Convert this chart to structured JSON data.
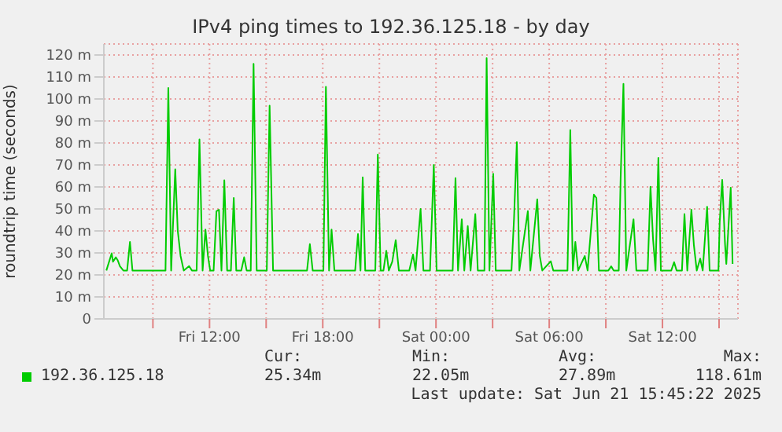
{
  "chart_data": {
    "type": "line",
    "title": "IPv4 ping times to 192.36.125.18 - by day",
    "ylabel": "roundtrip time (seconds)",
    "x": [
      "2025-06-20T06:32",
      "2025-06-20T06:49",
      "2025-06-20T06:53",
      "2025-06-20T07:02",
      "2025-06-20T07:08",
      "2025-06-20T07:15",
      "2025-06-20T07:26",
      "2025-06-20T07:38",
      "2025-06-20T07:47",
      "2025-06-20T07:55",
      "2025-06-20T09:40",
      "2025-06-20T09:49",
      "2025-06-20T09:58",
      "2025-06-20T10:11",
      "2025-06-20T10:19",
      "2025-06-20T10:28",
      "2025-06-20T10:38",
      "2025-06-20T10:55",
      "2025-06-20T11:04",
      "2025-06-20T11:19",
      "2025-06-20T11:28",
      "2025-06-20T11:38",
      "2025-06-20T11:47",
      "2025-06-20T11:55",
      "2025-06-20T12:02",
      "2025-06-20T12:13",
      "2025-06-20T12:22",
      "2025-06-20T12:30",
      "2025-06-20T12:38",
      "2025-06-20T12:47",
      "2025-06-20T12:56",
      "2025-06-20T13:08",
      "2025-06-20T13:17",
      "2025-06-20T13:25",
      "2025-06-20T13:41",
      "2025-06-20T13:50",
      "2025-06-20T13:58",
      "2025-06-20T14:11",
      "2025-06-20T14:20",
      "2025-06-20T14:30",
      "2025-06-20T15:02",
      "2025-06-20T15:11",
      "2025-06-20T15:22",
      "2025-06-20T17:10",
      "2025-06-20T17:19",
      "2025-06-20T17:28",
      "2025-06-20T18:02",
      "2025-06-20T18:10",
      "2025-06-20T18:20",
      "2025-06-20T18:28",
      "2025-06-20T18:37",
      "2025-06-20T19:43",
      "2025-06-20T19:52",
      "2025-06-20T20:00",
      "2025-06-20T20:07",
      "2025-06-20T20:15",
      "2025-06-20T20:47",
      "2025-06-20T20:55",
      "2025-06-20T21:04",
      "2025-06-20T21:13",
      "2025-06-20T21:22",
      "2025-06-20T21:30",
      "2025-06-20T21:41",
      "2025-06-20T21:52",
      "2025-06-20T22:02",
      "2025-06-20T22:35",
      "2025-06-20T22:47",
      "2025-06-20T22:55",
      "2025-06-20T23:11",
      "2025-06-20T23:20",
      "2025-06-20T23:41",
      "2025-06-20T23:53",
      "2025-06-21T00:02",
      "2025-06-21T00:53",
      "2025-06-21T01:02",
      "2025-06-21T01:10",
      "2025-06-21T01:22",
      "2025-06-21T01:30",
      "2025-06-21T01:41",
      "2025-06-21T01:50",
      "2025-06-21T02:05",
      "2025-06-21T02:13",
      "2025-06-21T02:34",
      "2025-06-21T02:41",
      "2025-06-21T02:50",
      "2025-06-21T03:02",
      "2025-06-21T03:10",
      "2025-06-21T04:00",
      "2025-06-21T04:08",
      "2025-06-21T04:17",
      "2025-06-21T04:25",
      "2025-06-21T04:52",
      "2025-06-21T05:00",
      "2025-06-21T05:22",
      "2025-06-21T05:30",
      "2025-06-21T05:38",
      "2025-06-21T06:05",
      "2025-06-21T06:13",
      "2025-06-21T06:58",
      "2025-06-21T07:07",
      "2025-06-21T07:15",
      "2025-06-21T07:23",
      "2025-06-21T07:32",
      "2025-06-21T07:53",
      "2025-06-21T08:02",
      "2025-06-21T08:22",
      "2025-06-21T08:30",
      "2025-06-21T08:38",
      "2025-06-21T09:08",
      "2025-06-21T09:17",
      "2025-06-21T09:25",
      "2025-06-21T09:41",
      "2025-06-21T09:47",
      "2025-06-21T09:56",
      "2025-06-21T10:05",
      "2025-06-21T10:28",
      "2025-06-21T10:37",
      "2025-06-21T10:56",
      "2025-06-21T11:13",
      "2025-06-21T11:22",
      "2025-06-21T11:30",
      "2025-06-21T11:38",
      "2025-06-21T11:47",
      "2025-06-21T11:55",
      "2025-06-21T12:28",
      "2025-06-21T12:37",
      "2025-06-21T12:45",
      "2025-06-21T13:02",
      "2025-06-21T13:10",
      "2025-06-21T13:19",
      "2025-06-21T13:32",
      "2025-06-21T13:40",
      "2025-06-21T13:49",
      "2025-06-21T14:00",
      "2025-06-21T14:08",
      "2025-06-21T14:22",
      "2025-06-21T14:30",
      "2025-06-21T14:58",
      "2025-06-21T15:02",
      "2025-06-21T15:10",
      "2025-06-21T15:19",
      "2025-06-21T15:23",
      "2025-06-21T15:37",
      "2025-06-21T15:43"
    ],
    "series": [
      {
        "name": "192.36.125.18",
        "color": "#00cc00",
        "values": [
          22,
          29.8,
          26,
          28,
          26.7,
          24,
          22,
          22,
          35,
          22,
          22,
          105,
          22,
          68,
          40,
          28.6,
          22,
          24,
          22,
          22,
          81.6,
          22,
          40.6,
          28.6,
          22,
          22,
          49,
          49.6,
          22,
          63,
          22,
          22,
          55,
          22,
          22,
          28,
          22,
          22,
          116,
          22,
          22,
          97,
          22,
          22,
          34,
          22,
          22,
          105.5,
          22,
          40.6,
          22,
          22,
          38.6,
          22,
          64.4,
          22,
          22,
          74.7,
          22,
          22,
          31,
          22,
          26,
          35.8,
          22,
          22,
          29.3,
          22,
          50,
          22,
          22,
          70,
          22,
          22,
          64,
          22,
          45.3,
          22,
          42.2,
          22,
          47.7,
          22,
          22,
          118.6,
          22,
          66,
          22,
          22,
          45.3,
          80.4,
          22,
          49,
          22,
          54.4,
          28.6,
          22,
          26.2,
          22,
          22,
          85.9,
          22,
          35,
          22,
          28.6,
          22,
          56.5,
          55,
          22,
          22,
          23.9,
          22,
          22,
          63.7,
          106.9,
          22,
          45.3,
          22,
          22,
          22,
          60.1,
          36.5,
          22,
          73.2,
          22,
          22,
          25.8,
          22,
          22,
          47.7,
          22,
          49.6,
          33.4,
          22,
          27.4,
          22,
          51,
          22,
          22,
          44,
          63.2,
          33.9,
          25,
          59.6,
          25
        ]
      }
    ],
    "xlim": [
      "2025-06-20T06:24",
      "2025-06-21T16:00"
    ],
    "xticks": [
      {
        "value": "2025-06-20T09:00",
        "label": null
      },
      {
        "value": "2025-06-20T12:00",
        "label": "Fri 12:00"
      },
      {
        "value": "2025-06-20T15:00",
        "label": null
      },
      {
        "value": "2025-06-20T18:00",
        "label": "Fri 18:00"
      },
      {
        "value": "2025-06-20T21:00",
        "label": null
      },
      {
        "value": "2025-06-21T00:00",
        "label": "Sat 00:00"
      },
      {
        "value": "2025-06-21T03:00",
        "label": null
      },
      {
        "value": "2025-06-21T06:00",
        "label": "Sat 06:00"
      },
      {
        "value": "2025-06-21T09:00",
        "label": null
      },
      {
        "value": "2025-06-21T12:00",
        "label": "Sat 12:00"
      },
      {
        "value": "2025-06-21T15:00",
        "label": null
      }
    ],
    "ylim": [
      0,
      125
    ],
    "yticks": [
      {
        "value": 0,
        "label": "0"
      },
      {
        "value": 10,
        "label": "10 m"
      },
      {
        "value": 20,
        "label": "20 m"
      },
      {
        "value": 30,
        "label": "30 m"
      },
      {
        "value": 40,
        "label": "40 m"
      },
      {
        "value": 50,
        "label": "50 m"
      },
      {
        "value": 60,
        "label": "60 m"
      },
      {
        "value": 70,
        "label": "70 m"
      },
      {
        "value": 80,
        "label": "80 m"
      },
      {
        "value": 90,
        "label": "90 m"
      },
      {
        "value": 100,
        "label": "100 m"
      },
      {
        "value": 110,
        "label": "110 m"
      },
      {
        "value": 120,
        "label": "120 m"
      }
    ],
    "grid": true,
    "legend": "bottom left",
    "marker": "none",
    "line_style": "solid",
    "annotations": [
      "Cur:",
      "Min:",
      "Avg:",
      "Max:",
      "25.34m",
      "22.05m",
      "27.89m",
      "118.61m",
      "Last update: Sat Jun 21 15:45:22 2025"
    ]
  }
}
